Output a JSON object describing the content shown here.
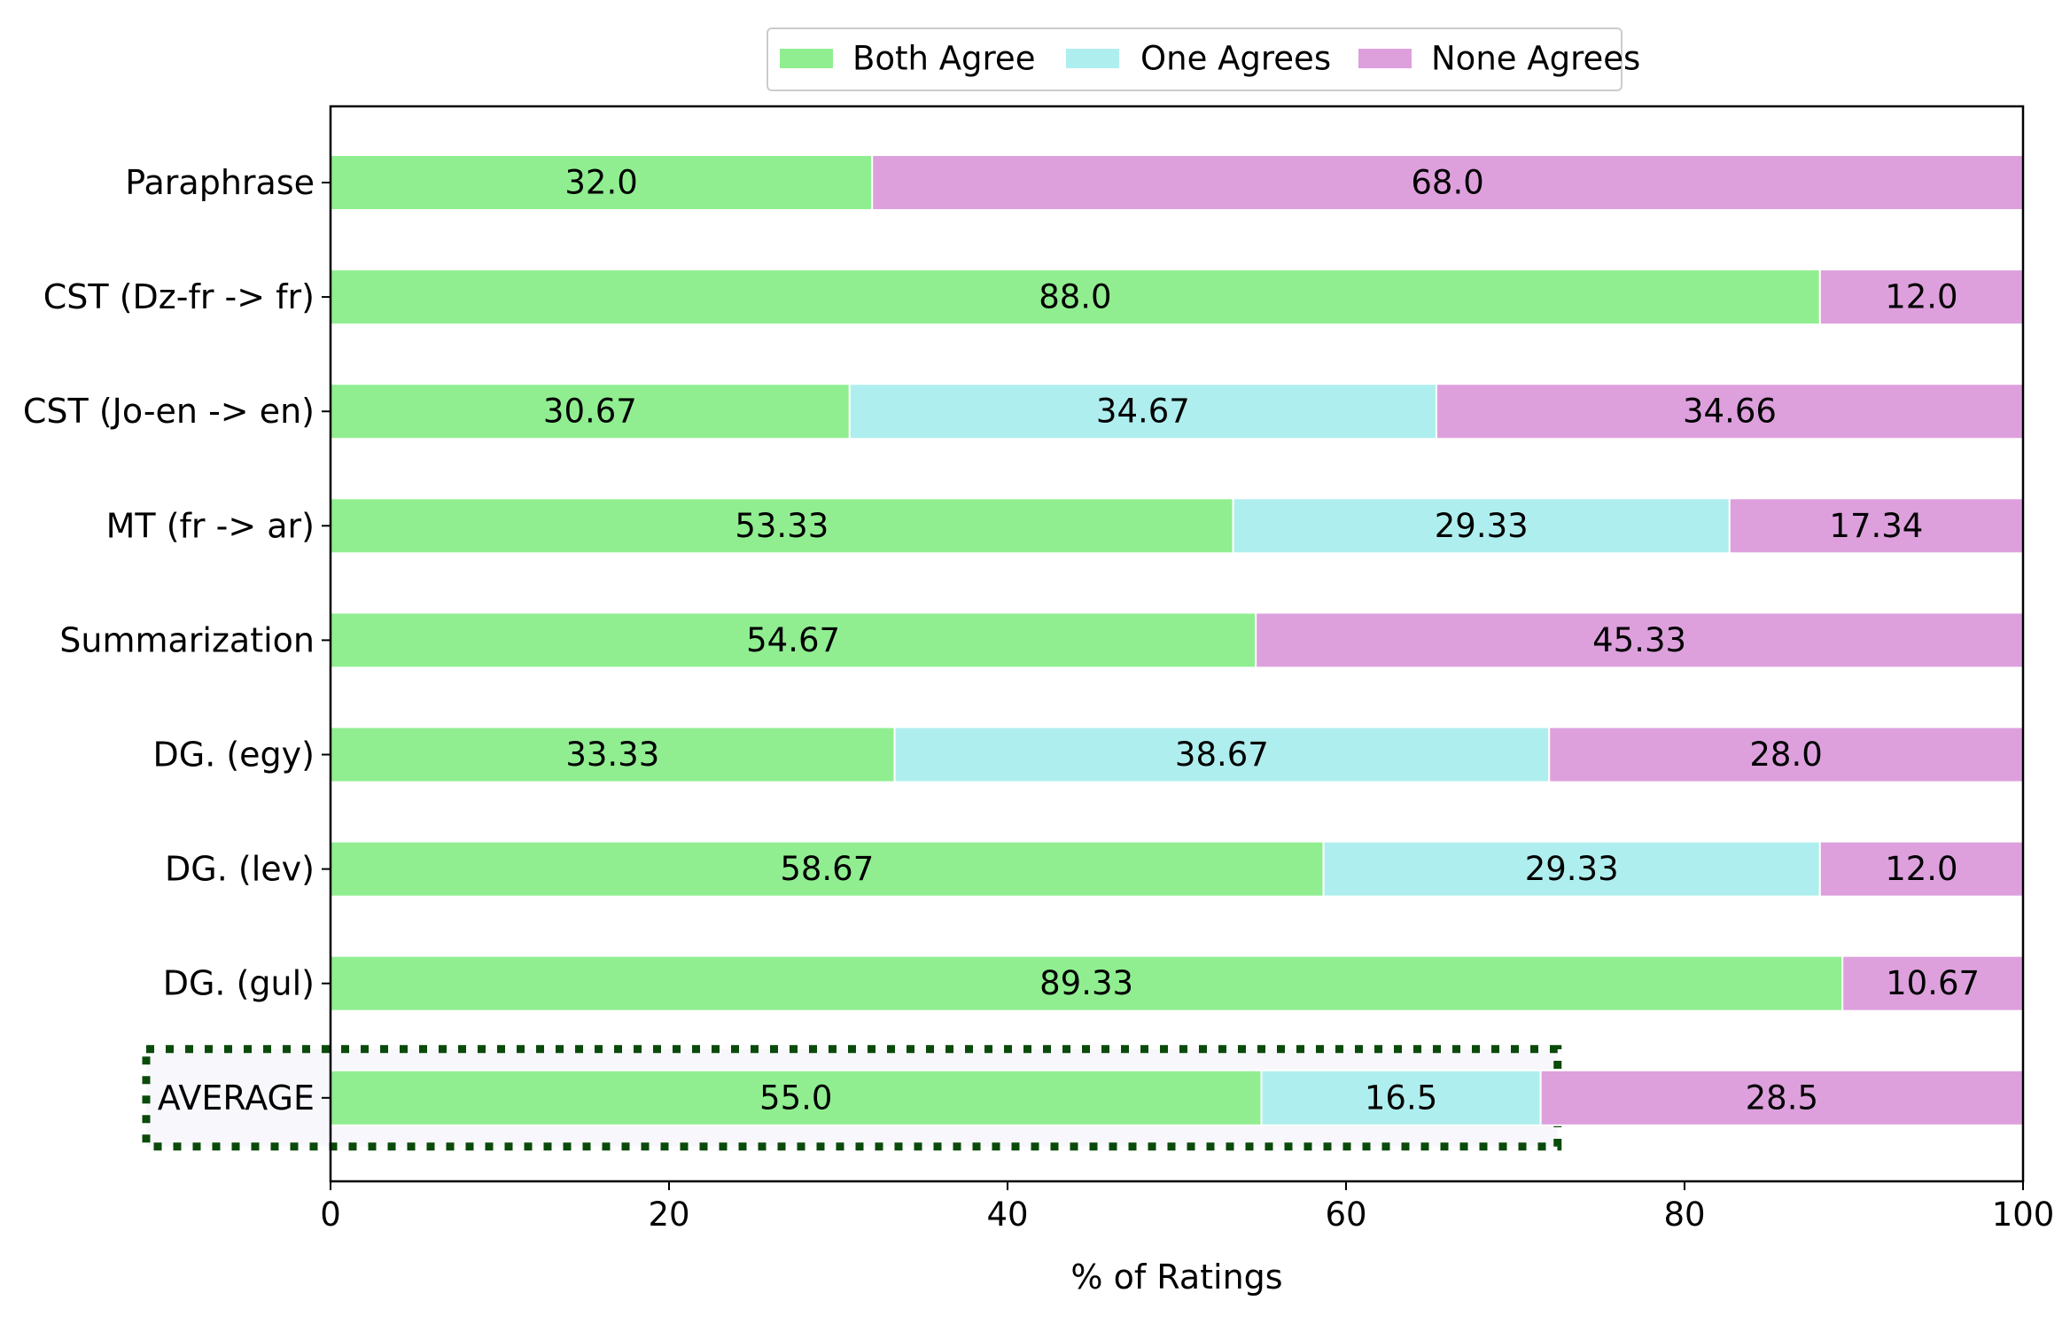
{
  "chart_data": {
    "type": "bar",
    "orientation": "horizontal",
    "stacked": true,
    "title": "",
    "xlabel": "% of Ratings",
    "ylabel": "",
    "xlim": [
      0,
      100
    ],
    "xticks": [
      "0",
      "20",
      "40",
      "60",
      "80",
      "100"
    ],
    "categories": [
      "Paraphrase",
      "CST (Dz-fr -> fr)",
      "CST (Jo-en -> en)",
      "MT (fr -> ar)",
      "Summarization",
      "DG. (egy)",
      "DG. (lev)",
      "DG. (gul)",
      "AVERAGE"
    ],
    "series": [
      {
        "name": "Both Agree",
        "color": "#90ee90",
        "values": [
          32.0,
          88.0,
          30.67,
          53.33,
          54.67,
          33.33,
          58.67,
          89.33,
          55.0
        ],
        "labels": [
          "32.0",
          "88.0",
          "30.67",
          "53.33",
          "54.67",
          "33.33",
          "58.67",
          "89.33",
          "55.0"
        ]
      },
      {
        "name": "One Agrees",
        "color": "#afeeee",
        "values": [
          0,
          0,
          34.67,
          29.33,
          0,
          38.67,
          29.33,
          0,
          16.5
        ],
        "labels": [
          "",
          "",
          "34.67",
          "29.33",
          "",
          "38.67",
          "29.33",
          "",
          "16.5"
        ]
      },
      {
        "name": "None Agrees",
        "color": "#dda0dd",
        "values": [
          68.0,
          12.0,
          34.66,
          17.34,
          45.33,
          28.0,
          12.0,
          10.67,
          28.5
        ],
        "labels": [
          "68.0",
          "12.0",
          "34.66",
          "17.34",
          "45.33",
          "28.0",
          "12.0",
          "10.67",
          "28.5"
        ]
      }
    ],
    "legend": {
      "placement": "top-center"
    },
    "highlight": {
      "category": "AVERAGE",
      "style": "dotted",
      "color": "#0a4a0a",
      "extends_to_value": 72.5
    }
  }
}
